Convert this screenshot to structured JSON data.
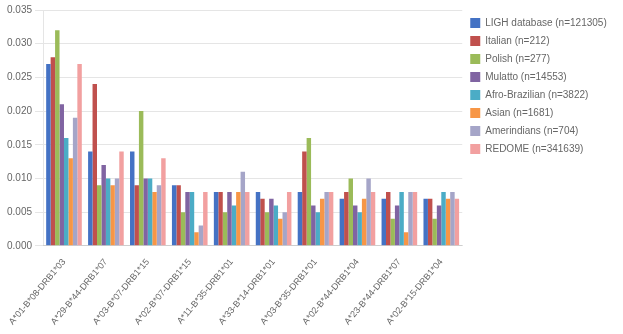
{
  "chart_data": {
    "type": "bar",
    "categories": [
      "A*01-B*08-DRB1*03",
      "A*29-B*44-DRB1*07",
      "A*03-B*07-DRB1*15",
      "A*02-B*07-DRB1*15",
      "A*11-B*35-DRB1*01",
      "A*33-B*14-DRB1*01",
      "A*03-B*35-DRB1*01",
      "A*02-B*44-DRB1*04",
      "A*23-B*44-DRB1*07",
      "A*02-B*15-DRB1*04"
    ],
    "series": [
      {
        "name": "LIGH database (n=121305)",
        "color": "#4472C4",
        "values": [
          0.027,
          0.014,
          0.014,
          0.009,
          0.008,
          0.008,
          0.008,
          0.007,
          0.007,
          0.007
        ]
      },
      {
        "name": "Italian (n=212)",
        "color": "#C0504D",
        "values": [
          0.028,
          0.024,
          0.009,
          0.009,
          0.008,
          0.007,
          0.014,
          0.008,
          0.008,
          0.007
        ]
      },
      {
        "name": "Polish (n=277)",
        "color": "#9BBB59",
        "values": [
          0.032,
          0.009,
          0.02,
          0.005,
          0.005,
          0.005,
          0.016,
          0.01,
          0.004,
          0.004
        ]
      },
      {
        "name": "Mulatto (n=14553)",
        "color": "#8064A2",
        "values": [
          0.021,
          0.012,
          0.01,
          0.008,
          0.008,
          0.007,
          0.006,
          0.006,
          0.006,
          0.006
        ]
      },
      {
        "name": "Afro-Brazilian (n=3822)",
        "color": "#4BACC6",
        "values": [
          0.016,
          0.01,
          0.01,
          0.008,
          0.006,
          0.006,
          0.005,
          0.005,
          0.008,
          0.008
        ]
      },
      {
        "name": "Asian (n=1681)",
        "color": "#F79646",
        "values": [
          0.013,
          0.009,
          0.008,
          0.002,
          0.008,
          0.004,
          0.007,
          0.007,
          0.002,
          0.007
        ]
      },
      {
        "name": "Amerindians (n=704)",
        "color": "#A5A5C8",
        "values": [
          0.019,
          0.01,
          0.009,
          0.003,
          0.011,
          0.005,
          0.008,
          0.01,
          0.008,
          0.008
        ]
      },
      {
        "name": "REDOME (n=341639)",
        "color": "#F2A0A0",
        "values": [
          0.027,
          0.014,
          0.013,
          0.008,
          0.008,
          0.008,
          0.008,
          0.008,
          0.008,
          0.007
        ]
      }
    ],
    "ylim": [
      0,
      0.035
    ],
    "yticks": [
      {
        "value": 0,
        "label": "0.000"
      },
      0.005,
      {
        "value": 0.01,
        "label": "0.010"
      },
      0.015,
      {
        "value": 0.02,
        "label": "0.020"
      },
      0.025,
      {
        "value": 0.03,
        "label": "0.030"
      },
      0.035
    ],
    "grid": true,
    "legend": "right"
  }
}
